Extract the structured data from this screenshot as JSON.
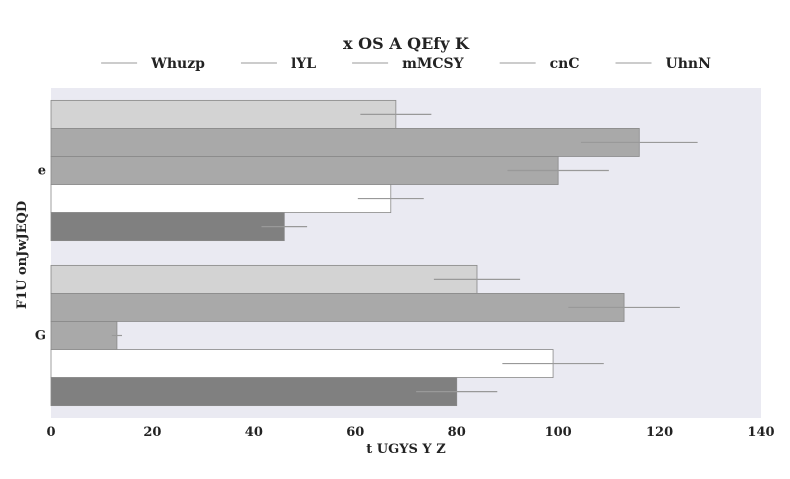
{
  "chart_data": {
    "type": "bar",
    "orientation": "horizontal",
    "title": "x OS A QEfy K",
    "xlabel": "t UGYS Y Z",
    "ylabel": "F1U onJwJEQD",
    "categories": [
      "e",
      "G"
    ],
    "xlim": [
      0,
      140
    ],
    "xticks": [
      0,
      20,
      40,
      60,
      80,
      100,
      120,
      140
    ],
    "grid": false,
    "legend_position": "top",
    "plot_background": "#eaeaf2",
    "series": [
      {
        "name": "Whuzp",
        "color": "#d3d3d3",
        "values": [
          68,
          84
        ],
        "errors": [
          7,
          8.5
        ]
      },
      {
        "name": "lYL",
        "color": "#a9a9a9",
        "values": [
          116,
          113
        ],
        "errors": [
          11.5,
          11
        ]
      },
      {
        "name": "mMCSY",
        "color": "#a9a9a9",
        "values": [
          100,
          13
        ],
        "errors": [
          10,
          1
        ]
      },
      {
        "name": "cnC",
        "color": "#ffffff",
        "values": [
          67,
          99
        ],
        "errors": [
          6.5,
          10
        ]
      },
      {
        "name": "UhnN",
        "color": "#808080",
        "values": [
          46,
          80
        ],
        "errors": [
          4.5,
          8
        ]
      }
    ]
  }
}
